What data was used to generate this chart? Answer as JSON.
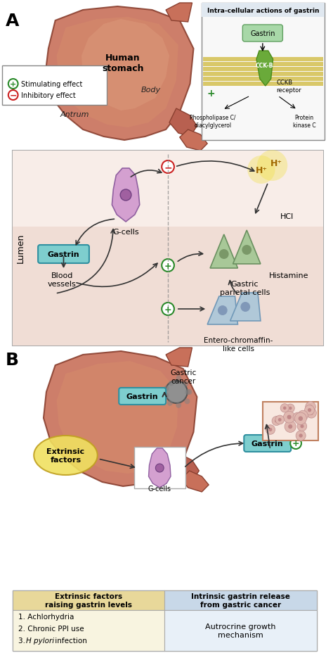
{
  "figsize": [
    4.74,
    9.29
  ],
  "dpi": 100,
  "bg_color": "#ffffff",
  "panel_A_label": "A",
  "panel_B_label": "B",
  "stimulating_color": "#2a8a2a",
  "inhibitory_color": "#cc2222",
  "arrow_color": "#333333",
  "dashed_line_color": "#888888",
  "inset_title": "Intra-cellular actions of gastrin",
  "table_header1_bg": "#e8d89a",
  "table_header2_bg": "#c8d8e8",
  "table_cell1_bg": "#f8f4e0",
  "table_cell2_bg": "#e8f0f8",
  "table_header1": "Extrinsic factors\nraising gastrin levels",
  "table_header2": "Intrinsic gastrin release\nfrom gastric cancer",
  "table_item1": "1. Achlorhydria",
  "table_item2": "2. Chronic PPI use",
  "table_item3_pre": "3. ",
  "table_item3_italic": "H pylori",
  "table_item3_post": " infection",
  "table_cell2_text": "Autrocrine growth\nmechanism",
  "extrinsic_factors_text": "Extrinsic\nfactors",
  "gastrin_label": "Gastrin",
  "gcells_label": "G-cells",
  "blood_vessels_label": "Blood\nvessels",
  "parietal_label": "Gastric\nparietal cells",
  "ecl_label": "Entero-chromaffin-\nlike cells",
  "histamine_label": "Histamine",
  "hcl_label": "HCl",
  "human_stomach_label": "Human\nstomach",
  "antrum_label": "Antrum",
  "body_label": "Body",
  "gcancer_label": "Gastric\ncancer",
  "lumen_label": "Lumen",
  "stimulating_legend": "Stimulating effect",
  "inhibitory_legend": "Inhibitory effect",
  "cckb_label": "CCKB\nreceptor",
  "phospho_label": "Phospholipase C/\ndiacylglycerol",
  "protein_label": "Protein\nkinase C"
}
